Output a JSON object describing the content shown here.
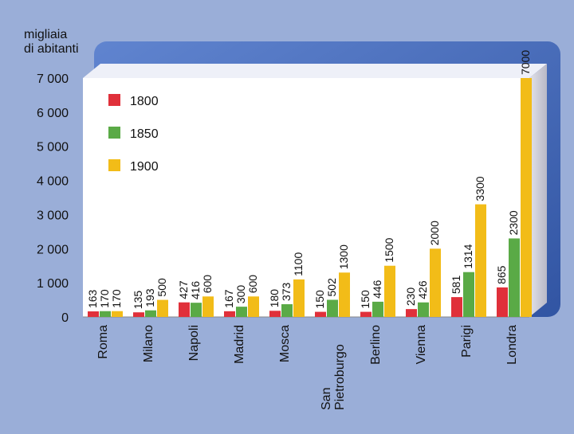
{
  "chart_data": {
    "type": "bar",
    "ylabel": "migliaia\ndi abitanti",
    "ylim": [
      0,
      7000
    ],
    "yticks": [
      "0",
      "1 000",
      "2 000",
      "3 000",
      "4 000",
      "5 000",
      "6 000",
      "7 000"
    ],
    "categories": [
      "Roma",
      "Milano",
      "Napoli",
      "Madrid",
      "Mosca",
      "San\nPietroburgo",
      "Berlino",
      "Vienna",
      "Parigi",
      "Londra"
    ],
    "series": [
      {
        "name": "1800",
        "color": "#e0303a",
        "values": [
          163,
          135,
          427,
          167,
          180,
          150,
          150,
          230,
          581,
          865
        ]
      },
      {
        "name": "1850",
        "color": "#5aaa46",
        "values": [
          170,
          193,
          416,
          300,
          373,
          502,
          446,
          426,
          1314,
          2300
        ]
      },
      {
        "name": "1900",
        "color": "#f2bc18",
        "values": [
          170,
          500,
          600,
          600,
          1100,
          1300,
          1500,
          2000,
          3300,
          7000
        ]
      }
    ],
    "legend": "top-left",
    "grid": false
  },
  "colors": {
    "background": "#9aaed8",
    "frame": "#3f66b8",
    "plot": "#ffffff",
    "side": "#cfcfd8"
  }
}
